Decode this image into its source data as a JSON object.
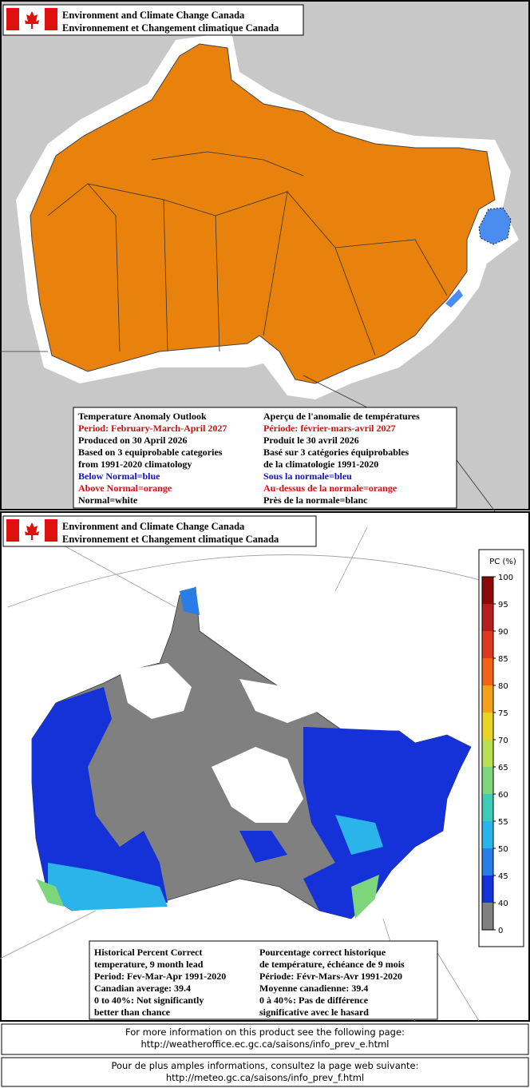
{
  "panels": [
    {
      "header": {
        "line1": "Environment and Climate Change Canada",
        "line2": "Environnement et Changement climatique Canada"
      },
      "info": {
        "english": [
          {
            "text": "Temperature Anomaly Outlook",
            "color": "#000000"
          },
          {
            "text": "Period: February-March-April 2027",
            "color": "#d01010"
          },
          {
            "text": "Produced on 30 April 2026",
            "color": "#000000"
          },
          {
            "text": "Based on 3 equiprobable categories",
            "color": "#000000"
          },
          {
            "text": "from 1991-2020 climatology",
            "color": "#000000"
          },
          {
            "text": "Below Normal=blue",
            "color": "#1010d0"
          },
          {
            "text": "Above Normal=orange",
            "color": "#d01010"
          },
          {
            "text": "Normal=white",
            "color": "#000000"
          }
        ],
        "french": [
          {
            "text": "Aperçu de l'anomalie de températures",
            "color": "#000000"
          },
          {
            "text": "Période: février-mars-avril 2027",
            "color": "#d01010"
          },
          {
            "text": "Produit le 30 avril 2026",
            "color": "#000000"
          },
          {
            "text": "Basé sur 3 catégories équiprobables",
            "color": "#000000"
          },
          {
            "text": "de la climatologie 1991-2020",
            "color": "#000000"
          },
          {
            "text": "Sous la normale=bleu",
            "color": "#1010d0"
          },
          {
            "text": "Au-dessus de la normale=orange",
            "color": "#d01010"
          },
          {
            "text": "Près de la normale=blanc",
            "color": "#000000"
          }
        ]
      }
    },
    {
      "header": {
        "line1": "Environment and Climate Change Canada",
        "line2": "Environnement et Changement climatique Canada"
      },
      "info": {
        "english": [
          {
            "text": "Historical Percent Correct",
            "color": "#000000"
          },
          {
            "text": "temperature, 9 month lead",
            "color": "#000000"
          },
          {
            "text": "Period: Fev-Mar-Apr 1991-2020",
            "color": "#000000"
          },
          {
            "text": "Canadian average: 39.4",
            "color": "#000000"
          },
          {
            "text": "0 to 40%: Not significantly",
            "color": "#000000"
          },
          {
            "text": "better than chance",
            "color": "#000000"
          }
        ],
        "french": [
          {
            "text": "Pourcentage correct historique",
            "color": "#000000"
          },
          {
            "text": "de température, échéance de 9 mois",
            "color": "#000000"
          },
          {
            "text": "Période: Févr-Mars-Avr 1991-2020",
            "color": "#000000"
          },
          {
            "text": "Moyenne canadienne: 39.4",
            "color": "#000000"
          },
          {
            "text": "0 à 40%: Pas de différence",
            "color": "#000000"
          },
          {
            "text": "significative avec le hasard",
            "color": "#000000"
          }
        ]
      }
    }
  ],
  "legend": {
    "title": "PC (%)",
    "ticks": [
      0,
      40,
      45,
      50,
      55,
      60,
      65,
      70,
      75,
      80,
      85,
      90,
      95,
      100
    ],
    "colors": [
      "#808080",
      "#1432d8",
      "#2a7de6",
      "#2bb4ea",
      "#3ecbb8",
      "#7ed67c",
      "#b9e050",
      "#e8d424",
      "#f3a01a",
      "#f0641a",
      "#dc3a1e",
      "#b41e1e",
      "#8a0a0a"
    ]
  },
  "footer": [
    {
      "line1": "For more information on this product see the following page:",
      "line2": "http://weatheroffice.ec.gc.ca/saisons/info_prev_e.html"
    },
    {
      "line1": "Pour de plus amples informations, consultez la page web suivante:",
      "line2": "http://meteo.gc.ca/saisons/info_prev_f.html"
    }
  ]
}
